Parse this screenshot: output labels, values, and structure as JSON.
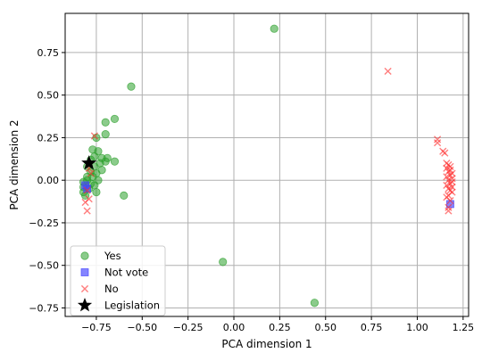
{
  "chart_data": {
    "type": "scatter",
    "title": "",
    "xlabel": "PCA dimension 1",
    "ylabel": "PCA dimension 2",
    "xlim": [
      -0.92,
      1.28
    ],
    "ylim": [
      -0.8,
      0.98
    ],
    "xticks": [
      -0.75,
      -0.5,
      -0.25,
      0.0,
      0.25,
      0.5,
      0.75,
      1.0,
      1.25
    ],
    "xtick_labels": [
      "−0.75",
      "−0.50",
      "−0.25",
      "0.00",
      "0.25",
      "0.50",
      "0.75",
      "1.00",
      "1.25"
    ],
    "yticks": [
      -0.75,
      -0.5,
      -0.25,
      0.0,
      0.25,
      0.5,
      0.75
    ],
    "ytick_labels": [
      "−0.75",
      "−0.50",
      "−0.25",
      "0.00",
      "0.25",
      "0.50",
      "0.75"
    ],
    "grid": true,
    "legend_position": "lower-left",
    "series": [
      {
        "name": "Yes",
        "marker": "circle",
        "color": "#2ca02c",
        "points": [
          [
            0.22,
            0.89
          ],
          [
            -0.56,
            0.55
          ],
          [
            -0.65,
            0.36
          ],
          [
            -0.7,
            0.34
          ],
          [
            -0.7,
            0.27
          ],
          [
            -0.75,
            0.25
          ],
          [
            -0.77,
            0.18
          ],
          [
            -0.74,
            0.17
          ],
          [
            -0.72,
            0.13
          ],
          [
            -0.69,
            0.13
          ],
          [
            -0.7,
            0.11
          ],
          [
            -0.65,
            0.11
          ],
          [
            -0.76,
            0.14
          ],
          [
            -0.78,
            0.12
          ],
          [
            -0.73,
            0.1
          ],
          [
            -0.8,
            0.08
          ],
          [
            -0.76,
            0.08
          ],
          [
            -0.72,
            0.06
          ],
          [
            -0.78,
            0.05
          ],
          [
            -0.75,
            0.04
          ],
          [
            -0.8,
            0.02
          ],
          [
            -0.77,
            0.02
          ],
          [
            -0.74,
            0.0
          ],
          [
            -0.8,
            0.0
          ],
          [
            -0.82,
            -0.01
          ],
          [
            -0.78,
            -0.02
          ],
          [
            -0.76,
            -0.03
          ],
          [
            -0.82,
            -0.04
          ],
          [
            -0.79,
            -0.05
          ],
          [
            -0.75,
            -0.07
          ],
          [
            -0.82,
            -0.07
          ],
          [
            -0.81,
            -0.09
          ],
          [
            -0.6,
            -0.09
          ],
          [
            -0.06,
            -0.48
          ],
          [
            0.44,
            -0.72
          ]
        ]
      },
      {
        "name": "Not vote",
        "marker": "square",
        "color": "#4444ff",
        "points": [
          [
            -0.81,
            -0.03
          ],
          [
            -0.8,
            -0.05
          ],
          [
            1.18,
            -0.14
          ]
        ]
      },
      {
        "name": "No",
        "marker": "x",
        "color": "#ff2a2a",
        "points": [
          [
            0.84,
            0.64
          ],
          [
            1.11,
            0.24
          ],
          [
            1.11,
            0.22
          ],
          [
            1.14,
            0.17
          ],
          [
            1.15,
            0.16
          ],
          [
            1.16,
            0.1
          ],
          [
            1.17,
            0.09
          ],
          [
            1.18,
            0.08
          ],
          [
            1.16,
            0.07
          ],
          [
            1.18,
            0.06
          ],
          [
            1.17,
            0.05
          ],
          [
            1.19,
            0.04
          ],
          [
            1.18,
            0.03
          ],
          [
            1.16,
            0.02
          ],
          [
            1.19,
            0.01
          ],
          [
            1.17,
            0.0
          ],
          [
            1.19,
            -0.01
          ],
          [
            1.18,
            -0.02
          ],
          [
            1.16,
            -0.03
          ],
          [
            1.19,
            -0.04
          ],
          [
            1.17,
            -0.05
          ],
          [
            1.18,
            -0.06
          ],
          [
            1.19,
            -0.07
          ],
          [
            1.17,
            -0.09
          ],
          [
            1.16,
            -0.1
          ],
          [
            1.18,
            -0.12
          ],
          [
            1.17,
            -0.16
          ],
          [
            1.17,
            -0.18
          ],
          [
            -0.76,
            0.26
          ],
          [
            -0.79,
            0.07
          ],
          [
            -0.78,
            0.04
          ],
          [
            -0.8,
            -0.06
          ],
          [
            -0.79,
            -0.11
          ],
          [
            -0.81,
            -0.13
          ],
          [
            -0.8,
            -0.18
          ]
        ]
      },
      {
        "name": "Legislation",
        "marker": "star",
        "color": "#000000",
        "points": [
          [
            -0.79,
            0.1
          ]
        ]
      }
    ]
  }
}
